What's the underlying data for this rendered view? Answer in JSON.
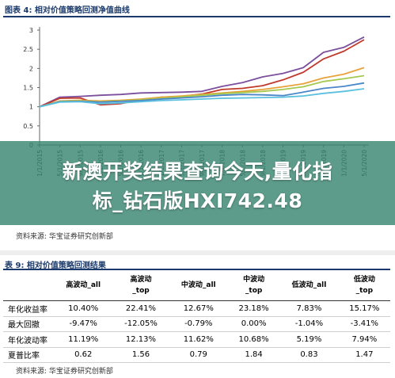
{
  "figure": {
    "title": "图表 4:  相对价值策略回测净值曲线"
  },
  "chart_data": {
    "type": "line",
    "title": "",
    "x": [
      "1/1/2015",
      "5/1/2015",
      "9/1/2015",
      "1/1/2016",
      "5/1/2016",
      "9/1/2016",
      "1/1/2017",
      "5/1/2017",
      "9/1/2017",
      "1/1/2018",
      "5/1/2018",
      "9/1/2018",
      "1/1/2019",
      "5/1/2019",
      "9/1/2019",
      "1/1/2020",
      "5/1/2020"
    ],
    "ylim": [
      0,
      3
    ],
    "yticks": [
      "0",
      "0.5",
      "1",
      "1.5",
      "2",
      "2.5",
      "3"
    ],
    "grid": false,
    "series": [
      {
        "color": "#7b4f9d",
        "values": [
          1.0,
          1.25,
          1.27,
          1.3,
          1.32,
          1.36,
          1.37,
          1.38,
          1.4,
          1.53,
          1.63,
          1.78,
          1.87,
          2.02,
          2.42,
          2.55,
          2.82
        ]
      },
      {
        "color": "#c0392b",
        "values": [
          1.0,
          1.22,
          1.23,
          1.05,
          1.08,
          1.18,
          1.25,
          1.27,
          1.33,
          1.45,
          1.48,
          1.55,
          1.7,
          1.9,
          2.25,
          2.45,
          2.75
        ]
      },
      {
        "color": "#e8a23a",
        "values": [
          1.0,
          1.15,
          1.17,
          1.15,
          1.17,
          1.2,
          1.25,
          1.28,
          1.32,
          1.36,
          1.4,
          1.45,
          1.52,
          1.6,
          1.75,
          1.85,
          2.02
        ]
      },
      {
        "color": "#a5c850",
        "values": [
          1.0,
          1.14,
          1.15,
          1.13,
          1.15,
          1.18,
          1.22,
          1.26,
          1.3,
          1.34,
          1.37,
          1.4,
          1.45,
          1.52,
          1.66,
          1.73,
          1.81
        ]
      },
      {
        "color": "#4a86c8",
        "values": [
          1.0,
          1.13,
          1.14,
          1.12,
          1.14,
          1.16,
          1.2,
          1.23,
          1.26,
          1.3,
          1.32,
          1.31,
          1.29,
          1.38,
          1.48,
          1.53,
          1.62
        ]
      },
      {
        "color": "#5bc0de",
        "values": [
          1.0,
          1.12,
          1.13,
          1.08,
          1.1,
          1.13,
          1.16,
          1.18,
          1.2,
          1.22,
          1.23,
          1.24,
          1.25,
          1.28,
          1.35,
          1.4,
          1.47
        ]
      }
    ]
  },
  "banner": {
    "line1": "新澳开奖结果查询今天,量化指",
    "line2": "标_钻石版HXI742.48"
  },
  "source1": "资料来源:  华宝证券研究创新部",
  "table": {
    "title": "表 9:  相对价值策略回测结果",
    "headers": [
      [
        "高波动_all",
        ""
      ],
      [
        "高波动",
        "_top"
      ],
      [
        "中波动_all",
        ""
      ],
      [
        "中波动",
        "_top"
      ],
      [
        "低波动_all",
        ""
      ],
      [
        "低波动",
        "_top"
      ]
    ],
    "rows": [
      {
        "label": "年化收益率",
        "values": [
          "10.40%",
          "22.41%",
          "12.67%",
          "23.18%",
          "7.83%",
          "15.17%"
        ]
      },
      {
        "label": "最大回撤",
        "values": [
          "-9.47%",
          "-12.05%",
          "-0.79%",
          "0.00%",
          "-1.04%",
          "-3.41%"
        ]
      },
      {
        "label": "年化波动率",
        "values": [
          "11.19%",
          "12.13%",
          "11.62%",
          "10.68%",
          "5.19%",
          "7.94%"
        ]
      },
      {
        "label": "夏普比率",
        "values": [
          "0.62",
          "1.56",
          "0.79",
          "1.84",
          "0.83",
          "1.47"
        ]
      }
    ]
  },
  "source2": "资料来源:  华宝证券研究创新部"
}
